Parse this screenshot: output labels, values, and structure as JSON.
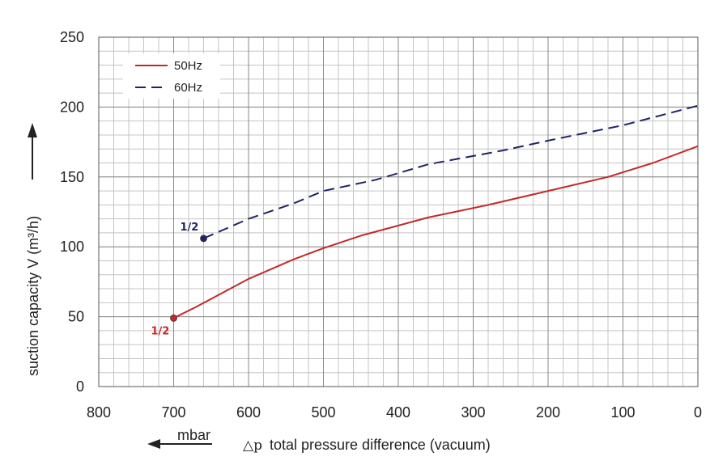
{
  "chart_data": {
    "type": "line",
    "xlabel_symbol": "△p",
    "xlabel": "total pressure difference (vacuum)",
    "xunit": "mbar",
    "ylabel": "suction capacity V (m³/h)",
    "xlim": [
      800,
      0
    ],
    "ylim": [
      0,
      250
    ],
    "x_ticks": [
      "800",
      "700",
      "600",
      "500",
      "400",
      "300",
      "200",
      "100",
      "0"
    ],
    "y_ticks": [
      "0",
      "50",
      "100",
      "150",
      "200",
      "250"
    ],
    "grid": true,
    "legend_position": "top-left",
    "series": [
      {
        "name": "50Hz",
        "color": "#c62828",
        "dash": "solid",
        "end_label": "1/2",
        "x": [
          700,
          670,
          600,
          540,
          500,
          450,
          360,
          280,
          200,
          120,
          60,
          0
        ],
        "y": [
          49,
          57,
          77,
          91,
          99,
          108,
          121,
          130,
          140,
          150,
          160,
          172
        ]
      },
      {
        "name": "60Hz",
        "color": "#1f2466",
        "dash": "dashed",
        "end_label": "1/2",
        "x": [
          660,
          600,
          540,
          500,
          430,
          360,
          260,
          200,
          100,
          0
        ],
        "y": [
          106,
          120,
          131,
          140,
          148,
          159,
          169,
          176,
          187,
          201
        ]
      }
    ]
  }
}
